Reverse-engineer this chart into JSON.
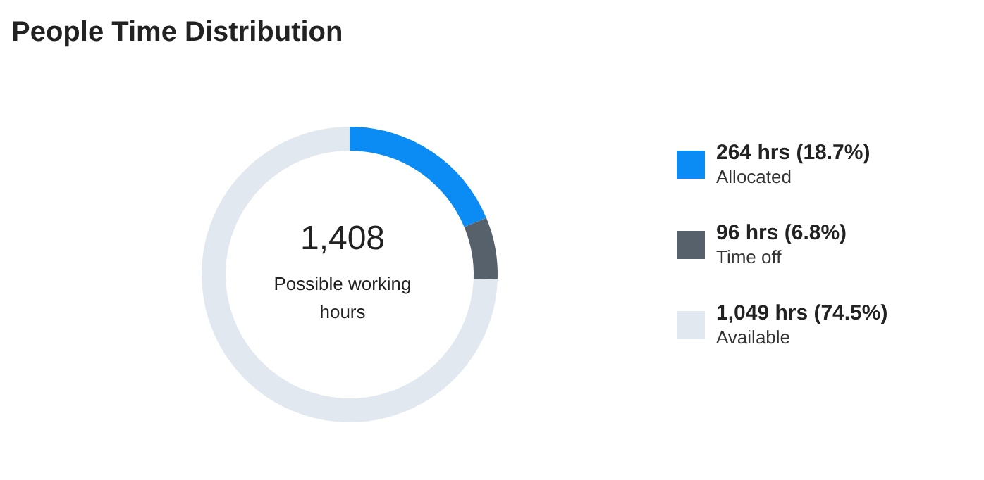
{
  "chart_data": {
    "type": "donut",
    "title": "People Time Distribution",
    "categories": [
      "Allocated",
      "Time off",
      "Available"
    ],
    "values": [
      264,
      96,
      1049
    ],
    "value_labels": [
      "264 hrs (18.7%)",
      "96 hrs (6.8%)",
      "1,049 hrs (74.5%)"
    ],
    "colors": [
      "#0b8cf4",
      "#57616c",
      "#e1e8ef"
    ],
    "annotations": [
      "1,408",
      "Possible working hours"
    ],
    "legend": "right"
  }
}
